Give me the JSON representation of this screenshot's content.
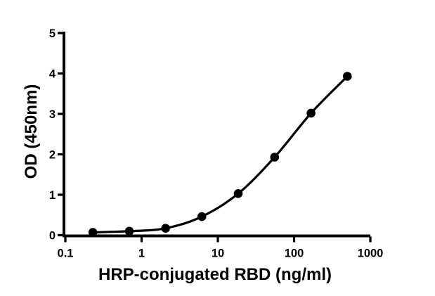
{
  "styles": {
    "background": "#ffffff",
    "axis_color": "#000000",
    "text_color": "#000000"
  },
  "chart_data": {
    "type": "scatter",
    "subtype": "sigmoidal-dose-response-fit",
    "title": "",
    "xlabel": "HRP-conjugated RBD (ng/ml)",
    "ylabel": "OD (450nm)",
    "x_scale": "log10",
    "xlim": [
      0.1,
      1000
    ],
    "ylim": [
      0,
      5
    ],
    "grid": false,
    "legend_position": "none",
    "x_ticks": [
      "0.1",
      "1",
      "10",
      "100",
      "1000"
    ],
    "y_ticks": [
      "0",
      "1",
      "2",
      "3",
      "4",
      "5"
    ],
    "series": [
      {
        "marker": "filled-circle",
        "line": "smooth-fit-curve",
        "color": "#000000",
        "points": [
          {
            "x": 0.23,
            "y": 0.07
          },
          {
            "x": 0.69,
            "y": 0.1
          },
          {
            "x": 2.06,
            "y": 0.17
          },
          {
            "x": 6.17,
            "y": 0.46
          },
          {
            "x": 18.5,
            "y": 1.03
          },
          {
            "x": 55.6,
            "y": 1.93
          },
          {
            "x": 166.7,
            "y": 3.02
          },
          {
            "x": 500,
            "y": 3.93
          }
        ]
      }
    ]
  }
}
